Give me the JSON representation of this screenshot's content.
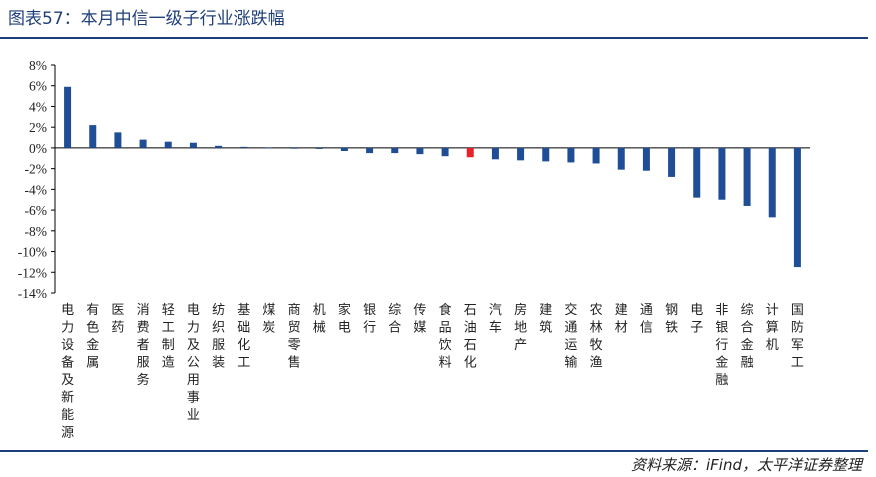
{
  "title": "图表57：本月中信一级子行业涨跌幅",
  "source": "资料来源：iFind，太平洋证券整理",
  "colors": {
    "bar": "#1f4e96",
    "highlight": "#e8202a",
    "axis": "#000000",
    "title": "#1f3f7a"
  },
  "chart_data": {
    "type": "bar",
    "categories": [
      "电力设备及新能源",
      "有色金属",
      "医药",
      "消费者服务",
      "轻工制造",
      "电力及公用事业",
      "纺织服装",
      "基础化工",
      "煤炭",
      "商贸零售",
      "机械",
      "家电",
      "银行",
      "综合",
      "传媒",
      "食品饮料",
      "石油石化",
      "汽车",
      "房地产",
      "建筑",
      "交通运输",
      "农林牧渔",
      "建材",
      "通信",
      "钢铁",
      "电子",
      "非银行金融",
      "综合金融",
      "计算机",
      "国防军工"
    ],
    "values": [
      5.9,
      2.2,
      1.5,
      0.8,
      0.6,
      0.5,
      0.2,
      0.1,
      0.05,
      -0.05,
      -0.1,
      -0.3,
      -0.5,
      -0.5,
      -0.6,
      -0.8,
      -0.9,
      -1.1,
      -1.2,
      -1.3,
      -1.4,
      -1.5,
      -2.1,
      -2.2,
      -2.8,
      -4.8,
      -5.0,
      -5.6,
      -6.7,
      -11.5
    ],
    "highlight_category": "石油石化",
    "ylim": [
      -14,
      8
    ],
    "yticks": [
      "8%",
      "6%",
      "4%",
      "2%",
      "0%",
      "-2%",
      "-4%",
      "-6%",
      "-8%",
      "-10%",
      "-12%",
      "-14%"
    ],
    "xlabel": "",
    "ylabel": "",
    "grid": false,
    "legend": "none"
  }
}
